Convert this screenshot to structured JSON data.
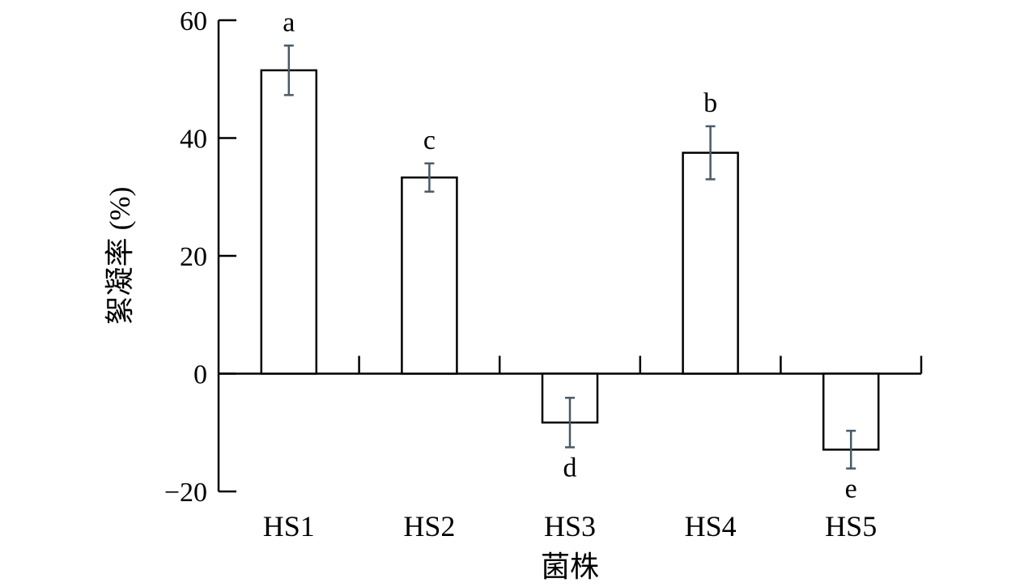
{
  "chart_data": {
    "type": "bar",
    "xlabel": "菌株",
    "ylabel": "絮凝率 (%)",
    "ylim": [
      -20,
      60
    ],
    "yticks": [
      60,
      40,
      20,
      0,
      -20
    ],
    "ytick_labels": [
      "60",
      "40",
      "20",
      "0",
      "−20"
    ],
    "categories": [
      "HS1",
      "HS2",
      "HS3",
      "HS4",
      "HS5"
    ],
    "values": [
      51.5,
      33.3,
      -8.3,
      37.5,
      -12.9
    ],
    "errors": [
      4.2,
      2.4,
      4.2,
      4.5,
      3.2
    ],
    "significance": [
      "a",
      "c",
      "d",
      "b",
      "e"
    ],
    "grid": false,
    "bar_fill": "#ffffff",
    "bar_stroke": "#000000",
    "error_color": "#4a5a66"
  }
}
